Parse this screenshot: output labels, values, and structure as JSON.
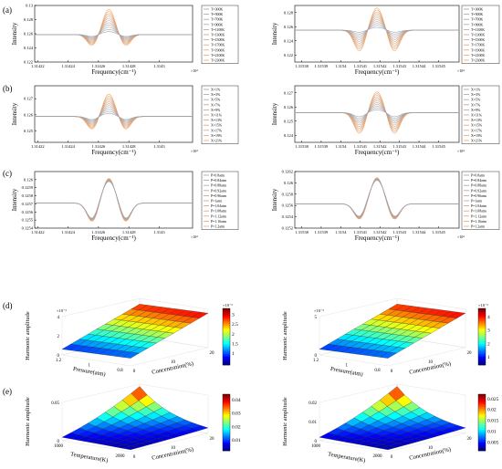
{
  "figure": {
    "row_labels": [
      "(a)",
      "(b)",
      "(c)",
      "(d)",
      "(e)"
    ],
    "colors": {
      "low": "#9aa0b0",
      "high": "#f2a66a",
      "axis": "#000000",
      "grid": "#dddddd"
    }
  },
  "chart_data": [
    {
      "type": "line",
      "id": "a-left",
      "row": "(a)",
      "xlabel": "Frequency(cm⁻¹)",
      "ylabel": "Intensity",
      "x_exponent": "×10⁴",
      "xticks": [
        "1.31422",
        "1.31424",
        "1.31426",
        "1.31428",
        "1.3143"
      ],
      "yticks": [
        "0.122",
        "0.124",
        "0.126",
        "0.128",
        "0.13"
      ],
      "ylim": [
        0.122,
        0.13
      ],
      "baseline": 0.1259,
      "center_frac": 0.47,
      "peak_max": 0.1295,
      "peak_min": 0.1263,
      "trough_max": 0.1243,
      "trough_min": 0.1256,
      "legend": [
        "T=300K",
        "T=500K",
        "T=700K",
        "T=900K",
        "T=1100K",
        "T=1300K",
        "T=1500K",
        "T=1700K",
        "T=1900K",
        "T=2100K",
        "T=2300K"
      ]
    },
    {
      "type": "line",
      "id": "a-right",
      "row": "(a)",
      "xlabel": "Frequency(cm⁻¹)",
      "ylabel": "Intensity",
      "x_exponent": "×10⁴",
      "xticks": [
        "1.31538",
        "1.31539",
        "1.3154",
        "1.31541",
        "1.31542",
        "1.31543",
        "1.31544",
        "1.31545"
      ],
      "yticks": [
        "0.122",
        "0.124",
        "0.126",
        "0.128"
      ],
      "ylim": [
        0.121,
        0.129
      ],
      "baseline": 0.1255,
      "center_frac": 0.5,
      "peak_max": 0.1287,
      "peak_min": 0.1259,
      "trough_max": 0.1225,
      "trough_min": 0.1252,
      "legend": [
        "T=300K",
        "T=500K",
        "T=700K",
        "T=900K",
        "T=1100K",
        "T=1300K",
        "T=1500K",
        "T=1700K",
        "T=1900K",
        "T=2100K",
        "T=2300K"
      ]
    },
    {
      "type": "line",
      "id": "b-left",
      "row": "(b)",
      "xlabel": "Frequency(cm⁻¹)",
      "ylabel": "Intensity",
      "x_exponent": "×10⁴",
      "xticks": [
        "1.31422",
        "1.31424",
        "1.31426",
        "1.31428",
        "1.3143"
      ],
      "yticks": [
        "0.125",
        "0.126",
        "0.127"
      ],
      "ylim": [
        0.1243,
        0.1278
      ],
      "baseline": 0.1259,
      "center_frac": 0.47,
      "peak_max": 0.1273,
      "peak_min": 0.1261,
      "trough_max": 0.1251,
      "trough_min": 0.1257,
      "legend": [
        "X=1%",
        "X=3%",
        "X=5%",
        "X=7%",
        "X=9%",
        "X=11%",
        "X=13%",
        "X=15%",
        "X=17%",
        "X=19%",
        "X=21%"
      ]
    },
    {
      "type": "line",
      "id": "b-right",
      "row": "(b)",
      "xlabel": "Frequency(cm⁻¹)",
      "ylabel": "Intensity",
      "x_exponent": "×10⁴",
      "xticks": [
        "1.31538",
        "1.31539",
        "1.3154",
        "1.31541",
        "1.31542",
        "1.31543",
        "1.31544",
        "1.31545"
      ],
      "yticks": [
        "0.124",
        "0.125",
        "0.126",
        "0.127"
      ],
      "ylim": [
        0.1235,
        0.1275
      ],
      "baseline": 0.1256,
      "center_frac": 0.5,
      "peak_max": 0.1271,
      "peak_min": 0.1258,
      "trough_max": 0.1241,
      "trough_min": 0.1253,
      "legend": [
        "X=1%",
        "X=3%",
        "X=5%",
        "X=7%",
        "X=9%",
        "X=11%",
        "X=13%",
        "X=15%",
        "X=17%",
        "X=19%",
        "X=21%"
      ]
    },
    {
      "type": "line",
      "id": "c-left",
      "row": "(c)",
      "xlabel": "Frequency(cm⁻¹)",
      "ylabel": "Intensity",
      "x_exponent": "×10⁴",
      "xticks": [
        "1.31422",
        "1.31424",
        "1.31426",
        "1.31428",
        "1.3143"
      ],
      "yticks": [
        "0.1254",
        "0.1255",
        "0.1256",
        "0.1257",
        "0.1258",
        "0.1259",
        "0.126"
      ],
      "ylim": [
        0.1254,
        0.1261
      ],
      "baseline": 0.12571,
      "center_frac": 0.47,
      "peak_max": 0.12602,
      "peak_min": 0.12598,
      "trough_max": 0.12548,
      "trough_min": 0.12551,
      "legend": [
        "P=0.8atm",
        "P=0.84atm",
        "P=0.88atm",
        "P=0.92atm",
        "P=0.96atm",
        "P=1atm",
        "P=1.04atm",
        "P=1.08atm",
        "P=1.12atm",
        "P=1.16atm",
        "P=1.2atm"
      ]
    },
    {
      "type": "line",
      "id": "c-right",
      "row": "(c)",
      "xlabel": "Frequency(cm⁻¹)",
      "ylabel": "Intensity",
      "x_exponent": "×10⁴",
      "xticks": [
        "1.31538",
        "1.31539",
        "1.3154",
        "1.31541",
        "1.31542",
        "1.31543",
        "1.31544",
        "1.31545"
      ],
      "yticks": [
        "0.1252",
        "0.1254",
        "0.1256",
        "0.1258",
        "0.126",
        "0.1262"
      ],
      "ylim": [
        0.1252,
        0.1262
      ],
      "baseline": 0.12563,
      "center_frac": 0.5,
      "peak_max": 0.1261,
      "peak_min": 0.12605,
      "trough_max": 0.12535,
      "trough_min": 0.12539,
      "legend": [
        "P=0.8atm",
        "P=0.84atm",
        "P=0.88atm",
        "P=0.92atm",
        "P=0.96atm",
        "P=1atm",
        "P=1.04atm",
        "P=1.08atm",
        "P=1.12atm",
        "P=1.16atm",
        "P=1.2atm"
      ]
    },
    {
      "type": "heatmap",
      "id": "d-left",
      "row": "(d)",
      "view": "3d-surface",
      "zlabel": "Harmonic amplitude",
      "z_exponent": "×10⁻³",
      "zticks": [
        "0",
        "2",
        "4"
      ],
      "xlabel": "Pressure(atm)",
      "xticks": [
        "1.2",
        "1",
        "0.8"
      ],
      "ylabel": "Concentration(%)",
      "yticks": [
        "0",
        "10",
        "20"
      ],
      "colorbar_ticks": [
        "1",
        "1.5",
        "2",
        "2.5",
        "3"
      ],
      "colorbar_exponent": "×10⁻³",
      "colorbar_range": [
        0.4,
        3.3
      ],
      "shape": "linear"
    },
    {
      "type": "heatmap",
      "id": "d-right",
      "row": "(d)",
      "view": "3d-surface",
      "zlabel": "Harmonic amplitude",
      "z_exponent": "×10⁻³",
      "zticks": [
        "0",
        "5"
      ],
      "xlabel": "Pressure(atm)",
      "xticks": [
        "1.2",
        "1",
        "0.8"
      ],
      "ylabel": "Concentration(%)",
      "yticks": [
        "0",
        "10",
        "20"
      ],
      "colorbar_ticks": [
        "1",
        "2",
        "3",
        "4"
      ],
      "colorbar_exponent": "×10⁻³",
      "colorbar_range": [
        0.4,
        4.6
      ],
      "shape": "linear"
    },
    {
      "type": "heatmap",
      "id": "e-left",
      "row": "(e)",
      "view": "3d-surface",
      "zlabel": "Harmonic amplitude",
      "zticks": [
        "0",
        "0.05"
      ],
      "xlabel": "Temperature(K)",
      "xticks": [
        "1000",
        "2000"
      ],
      "ylabel": "Concentration(%)",
      "yticks": [
        "0",
        "10",
        "20"
      ],
      "colorbar_ticks": [
        "0.01",
        "0.02",
        "0.03",
        "0.04"
      ],
      "colorbar_range": [
        0.002,
        0.044
      ],
      "shape": "peak"
    },
    {
      "type": "heatmap",
      "id": "e-right",
      "row": "(e)",
      "view": "3d-surface",
      "zlabel": "Harmonic amplitude",
      "zticks": [
        "0",
        "0.01",
        "0.02"
      ],
      "xlabel": "Temperature(K)",
      "xticks": [
        "1000",
        "2000"
      ],
      "ylabel": "Concentration(%)",
      "yticks": [
        "0",
        "10",
        "20"
      ],
      "colorbar_ticks": [
        "0.005",
        "0.01",
        "0.015",
        "0.02",
        "0.025"
      ],
      "colorbar_range": [
        0.001,
        0.027
      ],
      "shape": "peak"
    }
  ]
}
